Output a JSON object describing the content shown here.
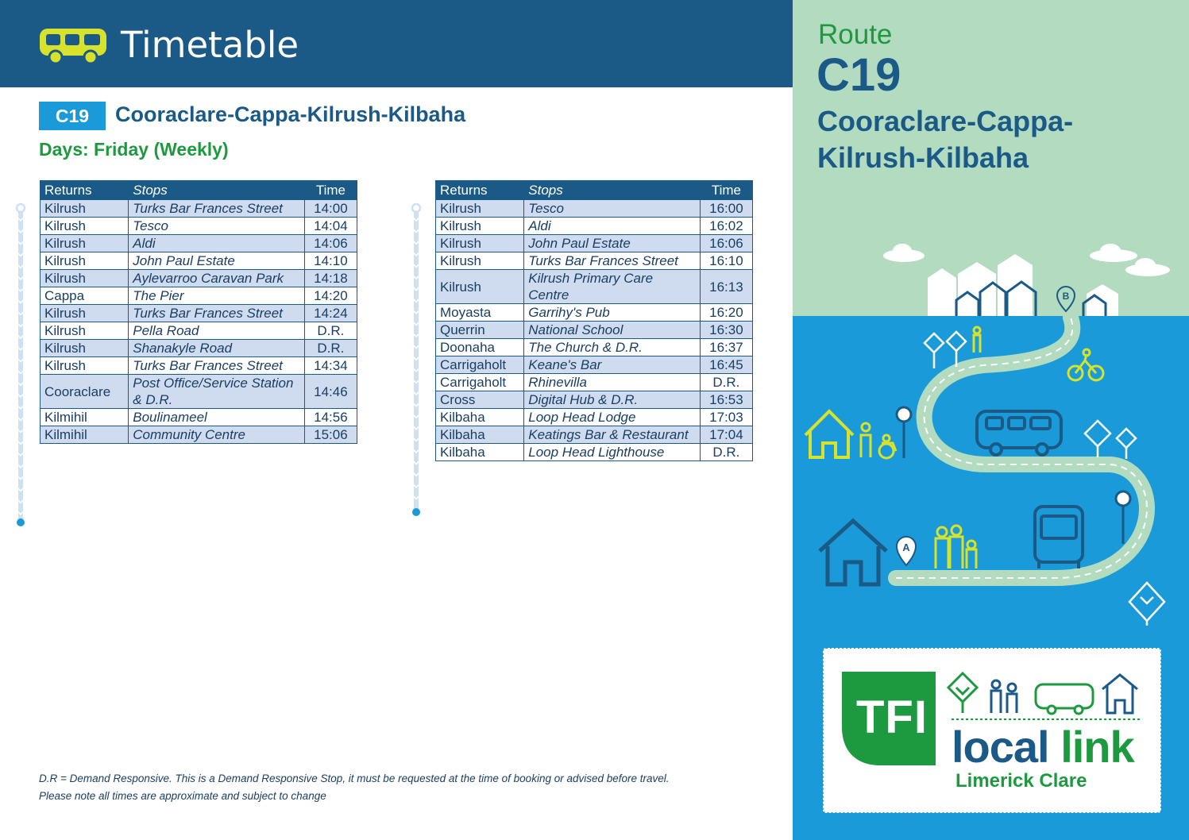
{
  "header": {
    "title": "Timetable",
    "bus_icon": "bus-icon"
  },
  "route": {
    "code": "C19",
    "name": "Cooraclare-Cappa-Kilrush-Kilbaha",
    "days": "Days: Friday (Weekly)"
  },
  "tables": [
    {
      "headers": [
        "Returns",
        "Stops",
        "Time"
      ],
      "rows": [
        [
          "Kilrush",
          "Turks Bar Frances Street",
          "14:00"
        ],
        [
          "Kilrush",
          "Tesco",
          "14:04"
        ],
        [
          "Kilrush",
          "Aldi",
          "14:06"
        ],
        [
          "Kilrush",
          "John Paul Estate",
          "14:10"
        ],
        [
          "Kilrush",
          "Aylevarroo Caravan Park",
          "14:18"
        ],
        [
          "Cappa",
          "The Pier",
          "14:20"
        ],
        [
          "Kilrush",
          "Turks Bar Frances Street",
          "14:24"
        ],
        [
          "Kilrush",
          "Pella Road",
          "D.R."
        ],
        [
          "Kilrush",
          "Shanakyle Road",
          "D.R."
        ],
        [
          "Kilrush",
          "Turks Bar Frances Street",
          "14:34"
        ],
        [
          "Cooraclare",
          "Post Office/Service Station & D.R.",
          "14:46"
        ],
        [
          "Kilmihil",
          "Boulinameel",
          "14:56"
        ],
        [
          "Kilmihil",
          "Community Centre",
          "15:06"
        ]
      ]
    },
    {
      "headers": [
        "Returns",
        "Stops",
        "Time"
      ],
      "rows": [
        [
          "Kilrush",
          "Tesco",
          "16:00"
        ],
        [
          "Kilrush",
          "Aldi",
          "16:02"
        ],
        [
          "Kilrush",
          "John Paul Estate",
          "16:06"
        ],
        [
          "Kilrush",
          "Turks Bar Frances Street",
          "16:10"
        ],
        [
          "Kilrush",
          "Kilrush Primary Care Centre",
          "16:13"
        ],
        [
          "Moyasta",
          "Garrihy's Pub",
          "16:20"
        ],
        [
          "Querrin",
          "National School",
          "16:30"
        ],
        [
          "Doonaha",
          "The Church & D.R.",
          "16:37"
        ],
        [
          "Carrigaholt",
          "Keane's Bar",
          "16:45"
        ],
        [
          "Carrigaholt",
          "Rhinevilla",
          "D.R."
        ],
        [
          "Cross",
          "Digital Hub & D.R.",
          "16:53"
        ],
        [
          "Kilbaha",
          "Loop Head Lodge",
          "17:03"
        ],
        [
          "Kilbaha",
          "Keatings Bar & Restaurant",
          "17:04"
        ],
        [
          "Kilbaha",
          "Loop Head Lighthouse",
          "D.R."
        ]
      ]
    }
  ],
  "footnotes": [
    "D.R = Demand Responsive. This is a Demand Responsive Stop, it must be requested at the time of booking or advised before travel.",
    "Please note all times are approximate and subject to change"
  ],
  "panel": {
    "route_label": "Route",
    "route_code": "C19",
    "route_name": "Cooraclare-Cappa-Kilrush-Kilbaha",
    "map_markers": [
      "A",
      "B"
    ],
    "illustration_icons": [
      "house-icon",
      "tree-icon",
      "bus-icon",
      "cyclist-icon",
      "bus-stop-icon",
      "people-icon",
      "wheelchair-icon",
      "cloud-icon"
    ]
  },
  "logo": {
    "tfi": "TFI",
    "local": "local",
    "link": "link",
    "region": "Limerick Clare"
  },
  "colors": {
    "navy": "#1b5a87",
    "light_blue": "#1a9ad8",
    "green": "#1d9a3f",
    "mint": "#b3dbbf",
    "lime": "#d6e22b",
    "row_alt": "#cfdcf0"
  }
}
